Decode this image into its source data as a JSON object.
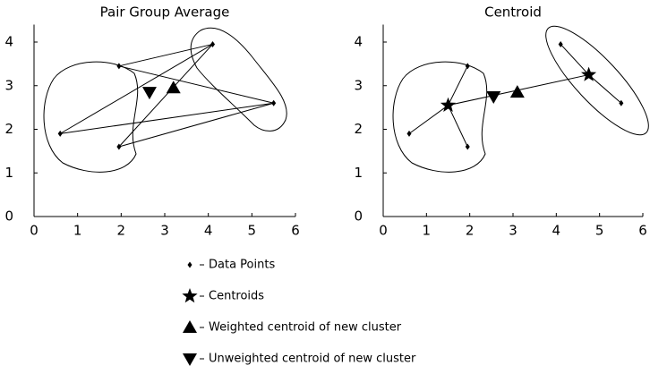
{
  "chart_data": [
    {
      "type": "scatter",
      "title": "Pair Group Average",
      "xlim": [
        0,
        6
      ],
      "ylim": [
        0,
        4.4
      ],
      "xticks": [
        0,
        1,
        2,
        3,
        4,
        5,
        6
      ],
      "yticks": [
        0,
        1,
        2,
        3,
        4
      ],
      "series": [
        {
          "name": "Data Points",
          "marker": "diamond",
          "color": "#000000",
          "x": [
            0.6,
            1.95,
            1.95,
            4.1,
            5.5
          ],
          "values": [
            1.9,
            3.45,
            1.6,
            3.95,
            2.6
          ]
        },
        {
          "name": "Weighted centroid of new cluster",
          "marker": "triangle-up",
          "color": "#000000",
          "x": [
            3.2
          ],
          "values": [
            2.95
          ]
        },
        {
          "name": "Unweighted centroid of new cluster",
          "marker": "triangle-down",
          "color": "#000000",
          "x": [
            2.65
          ],
          "values": [
            2.85
          ]
        }
      ]
    },
    {
      "type": "scatter",
      "title": "Centroid",
      "xlim": [
        0,
        6
      ],
      "ylim": [
        0,
        4.4
      ],
      "xticks": [
        0,
        1,
        2,
        3,
        4,
        5,
        6
      ],
      "yticks": [
        0,
        1,
        2,
        3,
        4
      ],
      "series": [
        {
          "name": "Data Points",
          "marker": "diamond",
          "color": "#000000",
          "x": [
            0.6,
            1.95,
            1.95,
            4.1,
            5.5
          ],
          "values": [
            1.9,
            3.45,
            1.6,
            3.95,
            2.6
          ]
        },
        {
          "name": "Centroids",
          "marker": "star",
          "color": "#000000",
          "x": [
            1.5,
            4.75
          ],
          "values": [
            2.55,
            3.25
          ]
        },
        {
          "name": "Weighted centroid of new cluster",
          "marker": "triangle-up",
          "color": "#000000",
          "x": [
            3.1
          ],
          "values": [
            2.85
          ]
        },
        {
          "name": "Unweighted centroid of new cluster",
          "marker": "triangle-down",
          "color": "#000000",
          "x": [
            2.55
          ],
          "values": [
            2.75
          ]
        }
      ]
    }
  ]
}
